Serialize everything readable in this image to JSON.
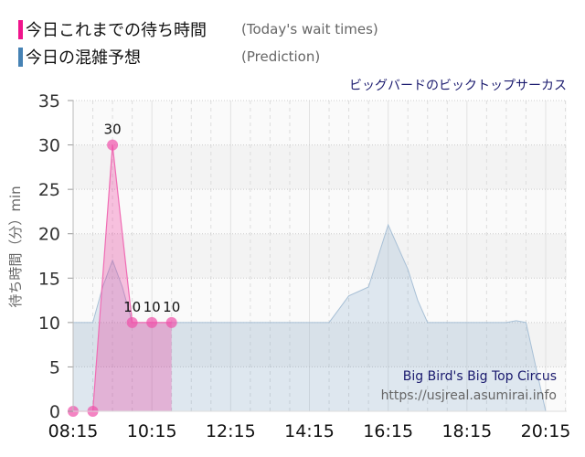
{
  "legend": [
    {
      "label_jp": "今日これまでの待ち時間",
      "label_en": "(Today's wait times)",
      "color": "#f0148c"
    },
    {
      "label_jp": "今日の混雑予想",
      "label_en": "(Prediction)",
      "color": "#4682b4"
    }
  ],
  "chart_data": {
    "type": "area",
    "title": "ビッグバードのビックトップサーカス",
    "ylabel": "待ち時間（分）min",
    "xlabel": "",
    "ylim": [
      0,
      35
    ],
    "yticks": [
      "0",
      "5",
      "10",
      "15",
      "20",
      "25",
      "30",
      "35"
    ],
    "xticks": [
      "08:15",
      "10:15",
      "12:15",
      "14:15",
      "16:15",
      "18:15",
      "20:15"
    ],
    "grid": true,
    "series": [
      {
        "name": "今日これまでの待ち時間",
        "color": "#f0148c",
        "x": [
          "08:15",
          "08:45",
          "09:15",
          "09:45",
          "10:15",
          "10:45"
        ],
        "values": [
          0,
          0,
          30,
          10,
          10,
          10
        ],
        "data_labels": [
          "",
          "",
          "30",
          "10",
          "10",
          "10"
        ]
      },
      {
        "name": "今日の混雑予想",
        "color": "#4682b4",
        "x_start": "08:15",
        "x_step_minutes": 15,
        "values": [
          10,
          10,
          10,
          14,
          17,
          14,
          10,
          10,
          10,
          10,
          10,
          10,
          10,
          10,
          10,
          10,
          10,
          10,
          10,
          10,
          10,
          10,
          10,
          10,
          10,
          10,
          10,
          11.5,
          13,
          13.5,
          14,
          17.5,
          21,
          18.5,
          16,
          12.5,
          10,
          10,
          10,
          10,
          10,
          10,
          10,
          10,
          10,
          10.2,
          10,
          5,
          0,
          0,
          0
        ]
      }
    ],
    "annotations": [
      "Big Bird's Big Top Circus",
      "https://usjreal.asumirai.info"
    ]
  }
}
